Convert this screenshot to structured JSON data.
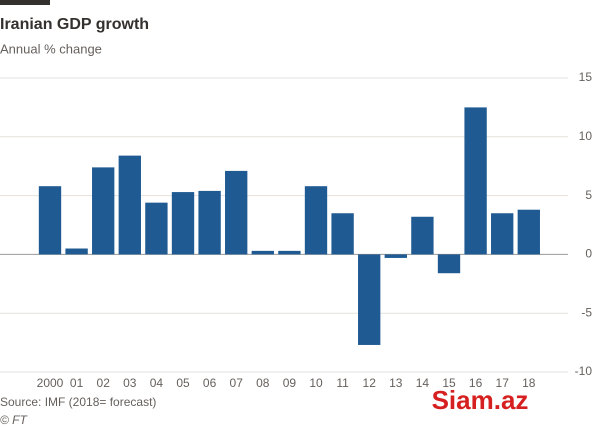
{
  "chart_data": {
    "type": "bar",
    "title": "Iranian GDP growth",
    "subtitle": "Annual % change",
    "categories": [
      "2000",
      "01",
      "02",
      "03",
      "04",
      "05",
      "06",
      "07",
      "08",
      "09",
      "10",
      "11",
      "12",
      "13",
      "14",
      "15",
      "16",
      "17",
      "18"
    ],
    "values": [
      5.8,
      0.5,
      7.4,
      8.4,
      4.4,
      5.3,
      5.4,
      7.1,
      0.3,
      0.3,
      5.8,
      3.5,
      -7.7,
      -0.3,
      3.2,
      -1.6,
      12.5,
      3.5,
      3.8
    ],
    "color": "#1f5a92",
    "ylim": [
      -10,
      15
    ],
    "yticks": [
      -10,
      -5,
      0,
      5,
      10,
      15
    ],
    "grid": true,
    "source": "Source: IMF (2018= forecast)",
    "credit": "© FT",
    "watermark": "Siam.az"
  }
}
